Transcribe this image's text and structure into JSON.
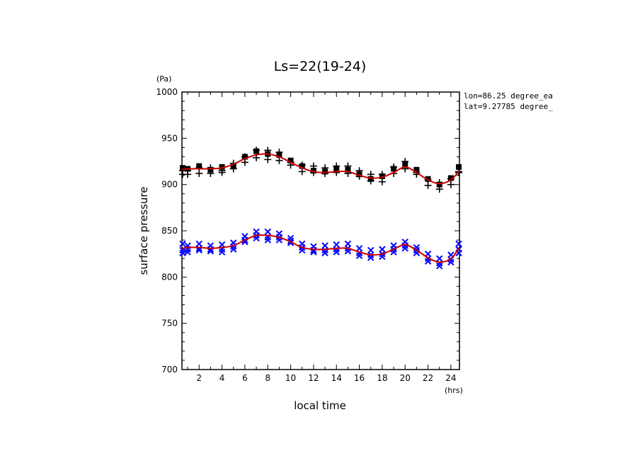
{
  "chart_data": {
    "type": "scatter",
    "title": "Ls=22(19-24)",
    "xlabel": "local time",
    "ylabel": "surface pressure",
    "xunit": "(hrs)",
    "yunit": "(Pa)",
    "annotations": [
      "lon=86.25 degree_ea",
      "lat=9.27785 degree_"
    ],
    "xlim": [
      0.5,
      24.75
    ],
    "ylim": [
      700,
      1000
    ],
    "x_ticks": [
      2,
      4,
      6,
      8,
      10,
      12,
      14,
      16,
      18,
      20,
      22,
      24
    ],
    "y_ticks": [
      700,
      750,
      800,
      850,
      900,
      950,
      1000
    ],
    "grid": false,
    "x": [
      0.5,
      1,
      2,
      3,
      4,
      5,
      6,
      7,
      8,
      9,
      10,
      11,
      12,
      13,
      14,
      15,
      16,
      17,
      18,
      19,
      20,
      21,
      22,
      23,
      24,
      24.75
    ],
    "series": [
      {
        "marker": "square",
        "color": "#000000",
        "values": [
          918,
          917,
          920,
          916,
          919,
          920,
          930,
          936,
          933,
          932,
          926,
          920,
          915,
          914,
          917,
          916,
          911,
          906,
          909,
          917,
          922,
          916,
          906,
          900,
          907,
          919
        ]
      },
      {
        "marker": "plus",
        "color": "#000000",
        "values": [
          [
            915,
            911
          ],
          [
            915,
            911
          ],
          [
            918,
            912
          ],
          [
            918,
            912
          ],
          [
            915,
            913
          ],
          [
            923,
            917
          ],
          [
            930,
            924
          ],
          [
            937,
            929
          ],
          [
            937,
            927
          ],
          [
            935,
            926
          ],
          [
            924,
            921
          ],
          [
            921,
            914
          ],
          [
            920,
            913
          ],
          [
            918,
            912
          ],
          [
            920,
            913
          ],
          [
            920,
            912
          ],
          [
            915,
            909
          ],
          [
            911,
            904
          ],
          [
            911,
            903
          ],
          [
            919,
            912
          ],
          [
            925,
            917
          ],
          [
            913,
            911
          ],
          [
            905,
            899
          ],
          [
            902,
            895
          ],
          [
            906,
            900
          ],
          [
            914,
            913
          ]
        ]
      },
      {
        "marker": "fit",
        "color": "#cc0000",
        "values": [
          916,
          917,
          917,
          917,
          918,
          922,
          928,
          932,
          933,
          930,
          924,
          918,
          914,
          913,
          914,
          914,
          910,
          907,
          908,
          913,
          919,
          913,
          905,
          901,
          905,
          915
        ]
      },
      {
        "marker": "cross",
        "color": "#0000ff",
        "values": [
          [
            836,
            829,
            826
          ],
          [
            834,
            830,
            827
          ],
          [
            836,
            831,
            829
          ],
          [
            834,
            830,
            828
          ],
          [
            835,
            830,
            827
          ],
          [
            837,
            833,
            830
          ],
          [
            844,
            840,
            838
          ],
          [
            849,
            845,
            842
          ],
          [
            849,
            843,
            840
          ],
          [
            847,
            843,
            840
          ],
          [
            842,
            839,
            837
          ],
          [
            836,
            832,
            829
          ],
          [
            833,
            829,
            827
          ],
          [
            834,
            829,
            826
          ],
          [
            835,
            830,
            827
          ],
          [
            836,
            831,
            828
          ],
          [
            831,
            826,
            823
          ],
          [
            829,
            824,
            821
          ],
          [
            830,
            825,
            822
          ],
          [
            834,
            830,
            827
          ],
          [
            838,
            834,
            831
          ],
          [
            832,
            829,
            826
          ],
          [
            825,
            820,
            817
          ],
          [
            820,
            815,
            812
          ],
          [
            824,
            819,
            816
          ],
          [
            836,
            830,
            826
          ]
        ]
      },
      {
        "marker": "fit",
        "color": "#cc0000",
        "values": [
          831,
          832,
          832,
          831,
          832,
          834,
          840,
          845,
          845,
          843,
          838,
          832,
          830,
          830,
          831,
          831,
          827,
          824,
          825,
          830,
          835,
          829,
          821,
          816,
          820,
          832
        ]
      }
    ]
  }
}
